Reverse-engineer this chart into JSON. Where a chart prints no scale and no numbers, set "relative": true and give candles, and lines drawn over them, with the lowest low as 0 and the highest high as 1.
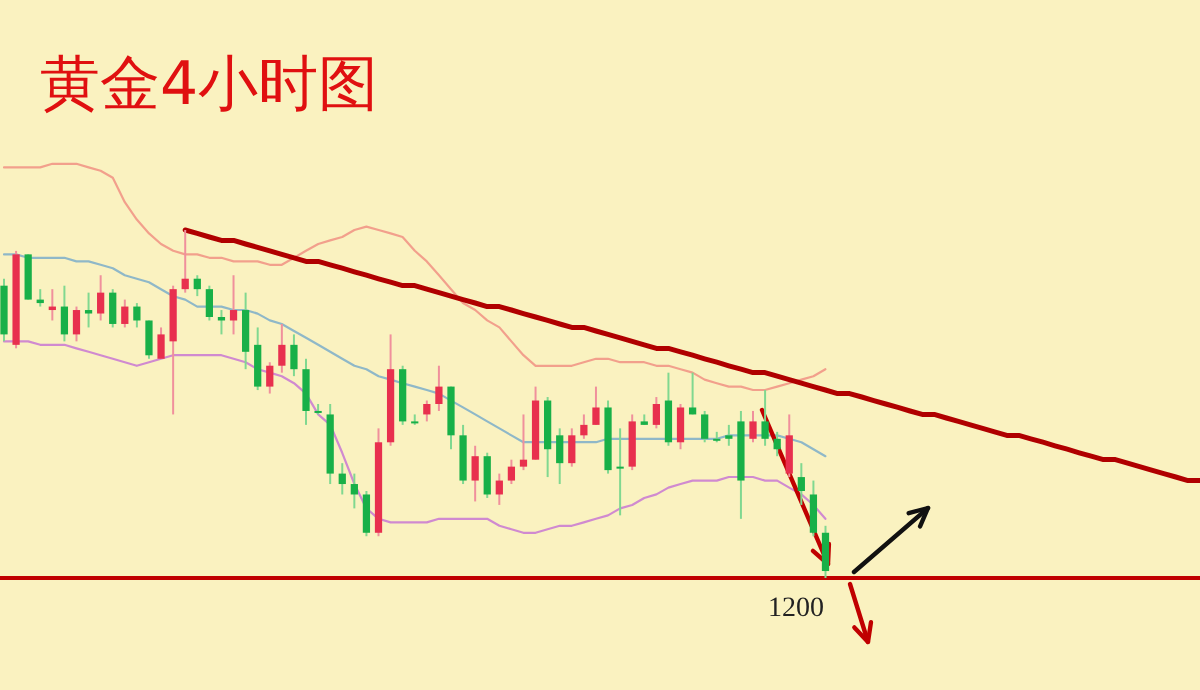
{
  "chart_data": {
    "type": "candlestick",
    "title": "黄金4小时图",
    "relative": true,
    "categories": [
      null,
      null,
      null,
      null,
      null,
      null,
      null,
      null,
      null,
      null,
      null,
      null,
      null,
      null,
      null,
      null,
      null,
      null,
      null,
      null,
      null,
      null,
      null,
      null,
      null,
      null,
      null,
      null,
      null,
      null,
      null,
      null,
      null,
      null,
      null,
      null,
      null,
      null,
      null,
      null,
      null,
      null,
      null,
      null,
      null,
      null,
      null,
      null,
      null,
      null,
      null,
      null,
      null,
      null,
      null,
      null,
      null,
      null,
      null,
      null,
      null,
      null,
      null,
      null,
      null,
      null,
      null,
      null,
      null,
      null,
      null,
      null,
      null,
      null,
      null,
      null,
      null,
      null,
      null,
      null,
      null,
      null,
      null,
      null,
      null,
      null,
      null,
      null,
      null,
      null,
      null,
      null,
      null,
      null,
      null,
      null,
      null,
      null,
      null,
      null
    ],
    "ohlc": [
      [
        0.84,
        0.86,
        0.68,
        0.7
      ],
      [
        0.67,
        0.94,
        0.66,
        0.93
      ],
      [
        0.93,
        0.93,
        0.8,
        0.8
      ],
      [
        0.8,
        0.83,
        0.78,
        0.79
      ],
      [
        0.77,
        0.83,
        0.74,
        0.78
      ],
      [
        0.78,
        0.84,
        0.68,
        0.7
      ],
      [
        0.7,
        0.78,
        0.68,
        0.77
      ],
      [
        0.77,
        0.82,
        0.72,
        0.76
      ],
      [
        0.76,
        0.87,
        0.74,
        0.82
      ],
      [
        0.82,
        0.83,
        0.72,
        0.73
      ],
      [
        0.73,
        0.8,
        0.72,
        0.78
      ],
      [
        0.78,
        0.79,
        0.72,
        0.74
      ],
      [
        0.74,
        0.74,
        0.63,
        0.64
      ],
      [
        0.63,
        0.72,
        0.63,
        0.7
      ],
      [
        0.68,
        0.84,
        0.47,
        0.83
      ],
      [
        0.83,
        1.0,
        0.82,
        0.86
      ],
      [
        0.86,
        0.87,
        0.81,
        0.83
      ],
      [
        0.83,
        0.84,
        0.74,
        0.75
      ],
      [
        0.75,
        0.77,
        0.7,
        0.74
      ],
      [
        0.74,
        0.87,
        0.7,
        0.77
      ],
      [
        0.77,
        0.82,
        0.6,
        0.65
      ],
      [
        0.67,
        0.72,
        0.54,
        0.55
      ],
      [
        0.55,
        0.62,
        0.53,
        0.61
      ],
      [
        0.61,
        0.73,
        0.59,
        0.67
      ],
      [
        0.67,
        0.7,
        0.58,
        0.6
      ],
      [
        0.6,
        0.63,
        0.44,
        0.48
      ],
      [
        0.48,
        0.5,
        0.47,
        0.48
      ],
      [
        0.47,
        0.5,
        0.27,
        0.3
      ],
      [
        0.3,
        0.33,
        0.24,
        0.27
      ],
      [
        0.27,
        0.3,
        0.2,
        0.24
      ],
      [
        0.24,
        0.25,
        0.12,
        0.13
      ],
      [
        0.13,
        0.43,
        0.12,
        0.39
      ],
      [
        0.39,
        0.7,
        0.38,
        0.6
      ],
      [
        0.6,
        0.61,
        0.44,
        0.45
      ],
      [
        0.45,
        0.47,
        0.44,
        0.45
      ],
      [
        0.47,
        0.51,
        0.45,
        0.5
      ],
      [
        0.5,
        0.61,
        0.48,
        0.55
      ],
      [
        0.55,
        0.55,
        0.37,
        0.41
      ],
      [
        0.41,
        0.44,
        0.27,
        0.28
      ],
      [
        0.28,
        0.38,
        0.22,
        0.35
      ],
      [
        0.35,
        0.36,
        0.23,
        0.24
      ],
      [
        0.24,
        0.3,
        0.21,
        0.28
      ],
      [
        0.28,
        0.34,
        0.27,
        0.32
      ],
      [
        0.32,
        0.47,
        0.31,
        0.34
      ],
      [
        0.34,
        0.55,
        0.34,
        0.51
      ],
      [
        0.51,
        0.52,
        0.29,
        0.37
      ],
      [
        0.41,
        0.43,
        0.27,
        0.33
      ],
      [
        0.33,
        0.43,
        0.32,
        0.41
      ],
      [
        0.41,
        0.47,
        0.4,
        0.44
      ],
      [
        0.44,
        0.55,
        0.44,
        0.49
      ],
      [
        0.49,
        0.51,
        0.3,
        0.31
      ],
      [
        0.32,
        0.43,
        0.18,
        0.32
      ],
      [
        0.32,
        0.47,
        0.31,
        0.45
      ],
      [
        0.45,
        0.47,
        0.44,
        0.44
      ],
      [
        0.44,
        0.52,
        0.43,
        0.5
      ],
      [
        0.51,
        0.59,
        0.38,
        0.39
      ],
      [
        0.39,
        0.5,
        0.37,
        0.49
      ],
      [
        0.49,
        0.59,
        0.47,
        0.47
      ],
      [
        0.47,
        0.48,
        0.39,
        0.4
      ],
      [
        0.4,
        0.42,
        0.39,
        0.4
      ],
      [
        0.41,
        0.44,
        0.38,
        0.4
      ],
      [
        0.45,
        0.48,
        0.17,
        0.28
      ],
      [
        0.4,
        0.48,
        0.39,
        0.45
      ],
      [
        0.45,
        0.54,
        0.38,
        0.4
      ],
      [
        0.4,
        0.42,
        0.35,
        0.37
      ],
      [
        0.3,
        0.47,
        0.29,
        0.41
      ],
      [
        0.29,
        0.33,
        0.21,
        0.25
      ],
      [
        0.24,
        0.28,
        0.12,
        0.13
      ],
      [
        0.13,
        0.15,
        0,
        0.02
      ],
      null,
      null,
      null,
      null,
      null,
      null,
      null,
      null,
      null,
      null,
      null,
      null,
      null,
      null,
      null,
      null,
      null,
      null,
      null,
      null,
      null,
      null,
      null,
      null,
      null,
      null,
      null,
      null,
      null,
      null,
      null
    ],
    "series": [
      {
        "type": "line",
        "color": "#f2a08c",
        "values": [
          1.18,
          1.18,
          1.18,
          1.18,
          1.19,
          1.19,
          1.19,
          1.18,
          1.17,
          1.15,
          1.08,
          1.03,
          0.99,
          0.96,
          0.94,
          0.93,
          0.93,
          0.92,
          0.92,
          0.91,
          0.91,
          0.91,
          0.9,
          0.9,
          0.92,
          0.94,
          0.96,
          0.97,
          0.98,
          1.0,
          1.01,
          1.0,
          0.99,
          0.98,
          0.94,
          0.91,
          0.87,
          0.83,
          0.79,
          0.77,
          0.74,
          0.72,
          0.68,
          0.64,
          0.61,
          0.61,
          0.61,
          0.61,
          0.62,
          0.63,
          0.63,
          0.62,
          0.62,
          0.62,
          0.61,
          0.61,
          0.6,
          0.59,
          0.57,
          0.56,
          0.55,
          0.55,
          0.54,
          0.54,
          0.55,
          0.56,
          0.57,
          0.58,
          0.6,
          null,
          null,
          null,
          null,
          null,
          null,
          null,
          null,
          null,
          null,
          null,
          null,
          null,
          null,
          null,
          null,
          null,
          null,
          null,
          null,
          null,
          null,
          null,
          null,
          null,
          null,
          null,
          null,
          null,
          null,
          null
        ]
      },
      {
        "type": "line",
        "color": "#8fb8c8",
        "values": [
          0.93,
          0.93,
          0.92,
          0.92,
          0.92,
          0.92,
          0.91,
          0.91,
          0.9,
          0.89,
          0.87,
          0.86,
          0.85,
          0.83,
          0.81,
          0.8,
          0.78,
          0.78,
          0.78,
          0.77,
          0.77,
          0.76,
          0.74,
          0.73,
          0.71,
          0.69,
          0.67,
          0.65,
          0.63,
          0.61,
          0.6,
          0.58,
          0.57,
          0.56,
          0.55,
          0.54,
          0.53,
          0.51,
          0.49,
          0.47,
          0.45,
          0.43,
          0.41,
          0.39,
          0.39,
          0.39,
          0.39,
          0.39,
          0.39,
          0.39,
          0.4,
          0.4,
          0.4,
          0.4,
          0.4,
          0.4,
          0.4,
          0.4,
          0.4,
          0.4,
          0.41,
          0.41,
          0.41,
          0.41,
          0.41,
          0.4,
          0.39,
          0.37,
          0.35,
          null,
          null,
          null,
          null,
          null,
          null,
          null,
          null,
          null,
          null,
          null,
          null,
          null,
          null,
          null,
          null,
          null,
          null,
          null,
          null,
          null,
          null,
          null,
          null,
          null,
          null,
          null,
          null,
          null,
          null,
          null
        ]
      },
      {
        "type": "line",
        "color": "#d08ad0",
        "values": [
          0.68,
          0.68,
          0.68,
          0.67,
          0.67,
          0.67,
          0.66,
          0.65,
          0.64,
          0.63,
          0.62,
          0.61,
          0.62,
          0.63,
          0.64,
          0.64,
          0.64,
          0.64,
          0.64,
          0.63,
          0.62,
          0.6,
          0.59,
          0.58,
          0.56,
          0.53,
          0.47,
          0.44,
          0.36,
          0.27,
          0.2,
          0.17,
          0.16,
          0.16,
          0.16,
          0.16,
          0.17,
          0.17,
          0.17,
          0.17,
          0.17,
          0.15,
          0.14,
          0.13,
          0.13,
          0.14,
          0.15,
          0.15,
          0.16,
          0.17,
          0.18,
          0.2,
          0.21,
          0.23,
          0.24,
          0.26,
          0.27,
          0.28,
          0.28,
          0.28,
          0.29,
          0.29,
          0.29,
          0.28,
          0.28,
          0.26,
          0.24,
          0.21,
          0.17,
          null,
          null,
          null,
          null,
          null,
          null,
          null,
          null,
          null,
          null,
          null,
          null,
          null,
          null,
          null,
          null,
          null,
          null,
          null,
          null,
          null,
          null,
          null,
          null,
          null,
          null,
          null,
          null,
          null,
          null,
          null
        ]
      },
      {
        "type": "line",
        "color": "#b00000",
        "values": [
          null,
          null,
          null,
          null,
          null,
          null,
          null,
          null,
          null,
          null,
          null,
          null,
          null,
          null,
          null,
          1.0,
          0.99,
          0.98,
          0.97,
          0.97,
          0.96,
          0.95,
          0.94,
          0.93,
          0.92,
          0.91,
          0.91,
          0.9,
          0.89,
          0.88,
          0.87,
          0.86,
          0.85,
          0.84,
          0.84,
          0.83,
          0.82,
          0.81,
          0.8,
          0.79,
          0.78,
          0.78,
          0.77,
          0.76,
          0.75,
          0.74,
          0.73,
          0.72,
          0.72,
          0.71,
          0.7,
          0.69,
          0.68,
          0.67,
          0.66,
          0.66,
          0.65,
          0.64,
          0.63,
          0.62,
          0.61,
          0.6,
          0.59,
          0.59,
          0.58,
          0.57,
          0.56,
          0.55,
          0.54,
          0.53,
          0.53,
          0.52,
          0.51,
          0.5,
          0.49,
          0.48,
          0.47,
          0.47,
          0.46,
          0.45,
          0.44,
          0.43,
          0.42,
          0.41,
          0.41,
          0.4,
          0.39,
          0.38,
          0.37,
          0.36,
          0.35,
          0.34,
          0.34,
          0.33,
          0.32,
          0.31,
          0.3,
          0.29,
          0.28,
          0.28
        ]
      }
    ],
    "ref_lines": [
      {
        "axis": "y",
        "value": 0,
        "color": "#c00000"
      }
    ],
    "annotations": [
      "1200"
    ]
  }
}
